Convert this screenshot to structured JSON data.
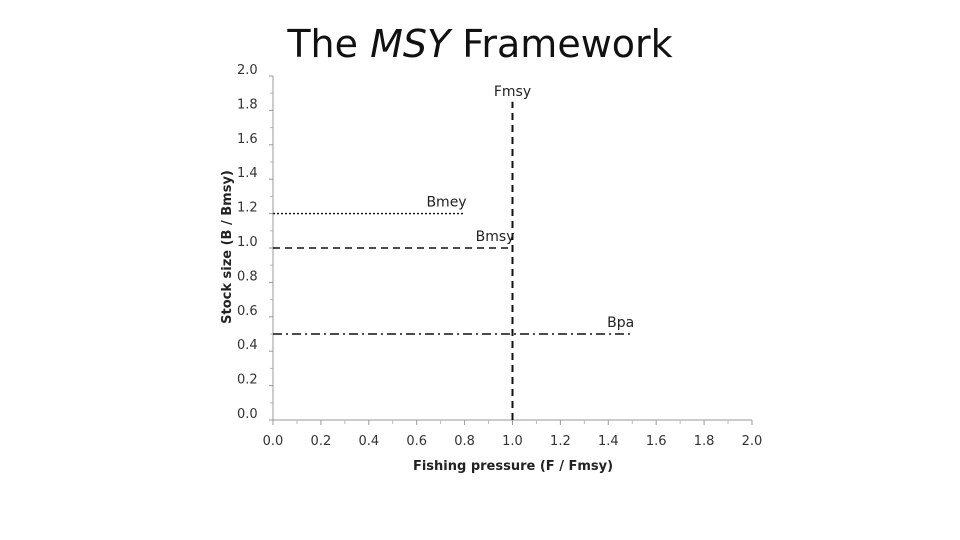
{
  "slide": {
    "title_prefix": "The ",
    "title_italic": "MSY",
    "title_suffix": " Framework"
  },
  "chart_data": {
    "type": "scatter",
    "title": "The MSY Framework",
    "xlabel": "Fishing pressure (F / Fmsy)",
    "ylabel": "Stock size (B / Bmsy)",
    "xlim": [
      0,
      2.0
    ],
    "ylim": [
      0,
      2.0
    ],
    "x_ticks": [
      "0.0",
      "0.2",
      "0.4",
      "0.6",
      "0.8",
      "1.0",
      "1.2",
      "1.4",
      "1.6",
      "1.8",
      "2.0"
    ],
    "y_ticks": [
      "0.0",
      "0.2",
      "0.4",
      "0.6",
      "0.8",
      "1.0",
      "1.2",
      "1.4",
      "1.6",
      "1.8",
      "2.0"
    ],
    "grid": false,
    "reference_lines": [
      {
        "name": "Fmsy",
        "orientation": "vertical",
        "x": 1.0,
        "y_range": [
          0,
          1.85
        ],
        "style": "dashed",
        "label": "Fmsy"
      },
      {
        "name": "Bmey",
        "orientation": "horizontal",
        "y": 1.2,
        "x_range": [
          0,
          0.8
        ],
        "style": "dotted",
        "label": "Bmey"
      },
      {
        "name": "Bmsy",
        "orientation": "horizontal",
        "y": 1.0,
        "x_range": [
          0,
          1.0
        ],
        "style": "dashed",
        "label": "Bmsy"
      },
      {
        "name": "Bpa",
        "orientation": "horizontal",
        "y": 0.5,
        "x_range": [
          0,
          1.5
        ],
        "style": "dashdot",
        "label": "Bpa"
      }
    ]
  }
}
